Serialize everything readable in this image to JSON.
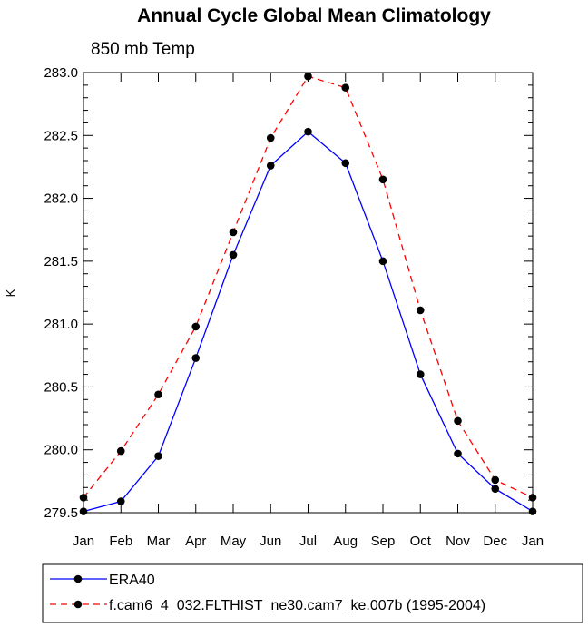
{
  "chart_data": {
    "type": "line",
    "title": "Annual Cycle Global Mean Climatology",
    "subtitle": "850 mb Temp",
    "xlabel": "",
    "ylabel": "K",
    "categories": [
      "Jan",
      "Feb",
      "Mar",
      "Apr",
      "May",
      "Jun",
      "Jul",
      "Aug",
      "Sep",
      "Oct",
      "Nov",
      "Dec",
      "Jan"
    ],
    "ylim": [
      279.5,
      283.0
    ],
    "yticks": [
      "279.5",
      "280.0",
      "280.5",
      "281.0",
      "281.5",
      "282.0",
      "282.5",
      "283.0"
    ],
    "legend_position": "bottom",
    "series": [
      {
        "name": "ERA40",
        "color": "#0000ff",
        "line_style": "solid",
        "marker": "filled-circle",
        "values": [
          279.51,
          279.59,
          279.95,
          280.73,
          281.55,
          282.26,
          282.53,
          282.28,
          281.5,
          280.6,
          279.97,
          279.69,
          279.51
        ]
      },
      {
        "name": "f.cam6_4_032.FLTHIST_ne30.cam7_ke.007b (1995-2004)",
        "color": "#ff0000",
        "line_style": "dashed",
        "marker": "filled-circle",
        "values": [
          279.62,
          279.99,
          280.44,
          280.98,
          281.73,
          282.48,
          282.97,
          282.88,
          282.15,
          281.11,
          280.23,
          279.76,
          279.62
        ]
      }
    ]
  }
}
